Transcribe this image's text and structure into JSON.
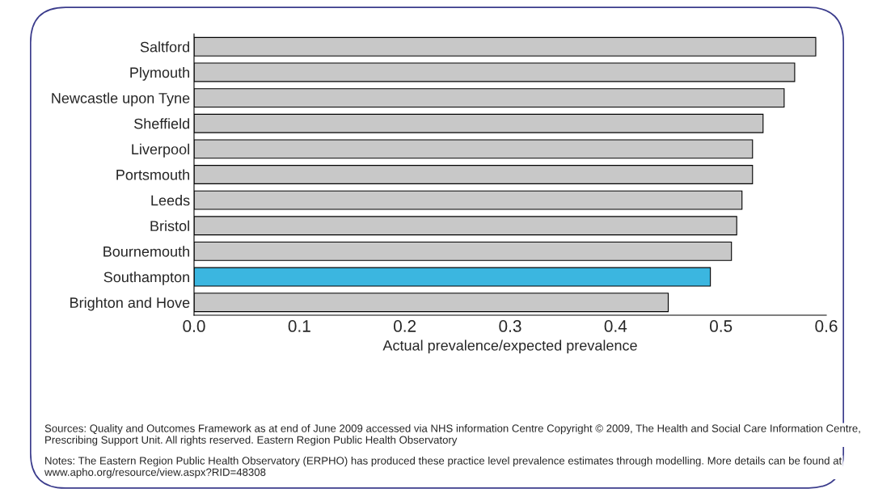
{
  "chart_data": {
    "type": "bar",
    "orientation": "horizontal",
    "xlabel": "Actual prevalence/expected prevalence",
    "categories": [
      "Saltford",
      "Plymouth",
      "Newcastle upon Tyne",
      "Sheffield",
      "Liverpool",
      "Portsmouth",
      "Leeds",
      "Bristol",
      "Bournemouth",
      "Southampton",
      "Brighton and Hove"
    ],
    "values": [
      0.59,
      0.57,
      0.56,
      0.54,
      0.53,
      0.53,
      0.52,
      0.515,
      0.51,
      0.49,
      0.45
    ],
    "colors": [
      "#c8c8c8",
      "#c8c8c8",
      "#c8c8c8",
      "#c8c8c8",
      "#c8c8c8",
      "#c8c8c8",
      "#c8c8c8",
      "#c8c8c8",
      "#c8c8c8",
      "#3bb6e0",
      "#c8c8c8"
    ],
    "xlim": [
      0,
      0.6
    ],
    "xticks": [
      {
        "value": 0,
        "label": "0.0"
      },
      0.1,
      0.2,
      0.3,
      0.4,
      0.5,
      0.6
    ],
    "grid": false,
    "legend": false,
    "annotations": [
      "Sources: Quality and Outcomes Framework as at end of June 2009 accessed via NHS information Centre Copyright © 2009, The Health and Social Care Information Centre, Prescribing Support Unit. All rights reserved. Eastern Region Public Health Observatory",
      "Notes: The Eastern Region Public Health Observatory (ERPHO) has produced these practice level prevalence estimates through modelling. More details can be found at www.apho.org/resource/view.aspx?RID=48308"
    ]
  }
}
